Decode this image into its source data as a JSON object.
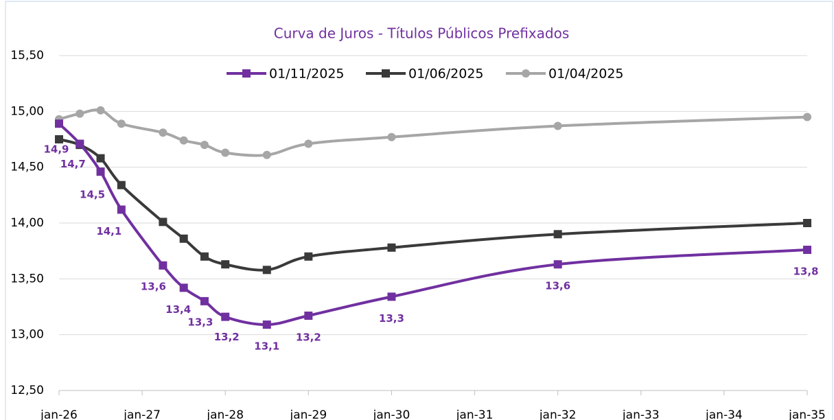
{
  "chart_data": {
    "type": "line",
    "title": "Curva de Juros - Títulos Públicos Prefixados",
    "x": [
      2026.0,
      2026.25,
      2026.5,
      2026.75,
      2027.25,
      2027.5,
      2027.75,
      2028.0,
      2028.5,
      2029.0,
      2030.0,
      2032.0,
      2035.0
    ],
    "series": [
      {
        "name": "01/11/2025",
        "color": "#7030a0",
        "marker": "square",
        "values": [
          14.89,
          14.71,
          14.46,
          14.12,
          13.62,
          13.42,
          13.3,
          13.16,
          13.09,
          13.17,
          13.34,
          13.63,
          13.76
        ],
        "value_labels": [
          "14,9",
          "14,7",
          "14,5",
          "14,1",
          "13,6",
          "13,4",
          "13,3",
          "13,2",
          "13,1",
          "13,2",
          "13,3",
          "13,6",
          "13,8"
        ]
      },
      {
        "name": "01/06/2025",
        "color": "#3a3a3a",
        "marker": "square",
        "values": [
          14.75,
          14.7,
          14.58,
          14.34,
          14.01,
          13.86,
          13.7,
          13.63,
          13.58,
          13.7,
          13.78,
          13.9,
          14.0
        ]
      },
      {
        "name": "01/04/2025",
        "color": "#a6a6a6",
        "marker": "circle",
        "values": [
          14.93,
          14.98,
          15.01,
          14.89,
          14.81,
          14.74,
          14.7,
          14.63,
          14.61,
          14.71,
          14.77,
          14.87,
          14.95
        ]
      }
    ],
    "xlim": [
      2026,
      2035
    ],
    "xticks": [
      {
        "value": 2026,
        "label": "jan-26"
      },
      {
        "value": 2027,
        "label": "jan-27"
      },
      {
        "value": 2028,
        "label": "jan-28"
      },
      {
        "value": 2029,
        "label": "jan-29"
      },
      {
        "value": 2030,
        "label": "jan-30"
      },
      {
        "value": 2031,
        "label": "jan-31"
      },
      {
        "value": 2032,
        "label": "jan-32"
      },
      {
        "value": 2033,
        "label": "jan-33"
      },
      {
        "value": 2034,
        "label": "jan-34"
      },
      {
        "value": 2035,
        "label": "jan-35"
      }
    ],
    "ylim": [
      12.5,
      15.5
    ],
    "yticks": [
      {
        "value": 12.5,
        "label": "12,50"
      },
      {
        "value": 13,
        "label": "13,00"
      },
      {
        "value": 13.5,
        "label": "13,50"
      },
      {
        "value": 14,
        "label": "14,00"
      },
      {
        "value": 14.5,
        "label": "14,50"
      },
      {
        "value": 15,
        "label": "15,00"
      },
      {
        "value": 15.5,
        "label": "15,50"
      }
    ],
    "grid": true,
    "legend": "top"
  }
}
